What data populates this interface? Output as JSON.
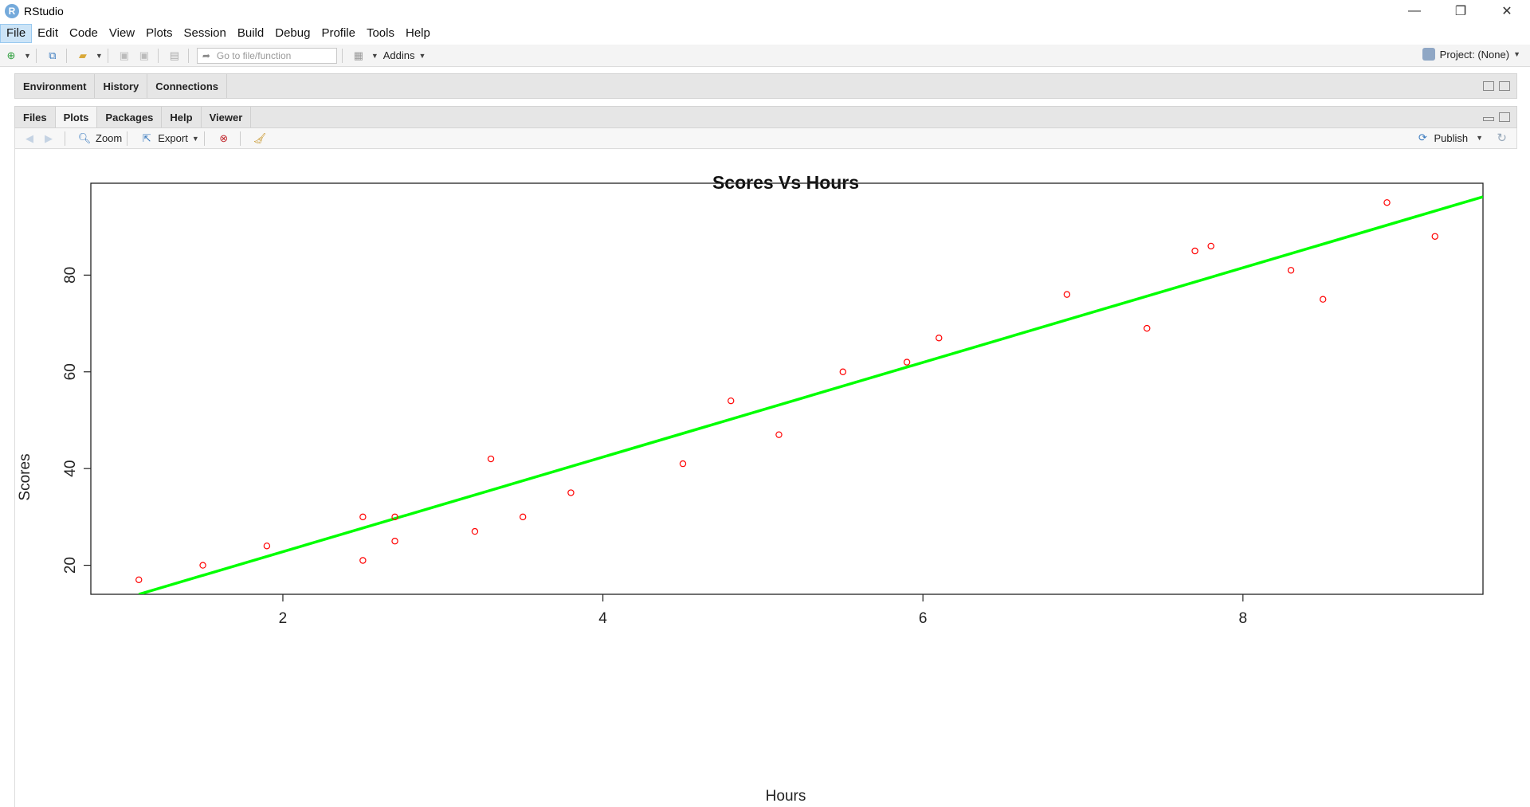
{
  "window": {
    "title": "RStudio",
    "icon_letter": "R"
  },
  "menu": [
    "File",
    "Edit",
    "Code",
    "View",
    "Plots",
    "Session",
    "Build",
    "Debug",
    "Profile",
    "Tools",
    "Help"
  ],
  "toolbar": {
    "goto_placeholder": "Go to file/function",
    "addins_label": "Addins",
    "project_label": "Project: (None)"
  },
  "env_tabs": [
    "Environment",
    "History",
    "Connections"
  ],
  "plot_tabs": [
    "Files",
    "Plots",
    "Packages",
    "Help",
    "Viewer"
  ],
  "plot_toolbar": {
    "zoom_label": "Zoom",
    "export_label": "Export",
    "publish_label": "Publish"
  },
  "colors": {
    "points": "#ff0000",
    "fit_line": "#00ff00",
    "accent": "#75aadb"
  },
  "chart_data": {
    "type": "scatter",
    "title": "Scores Vs Hours",
    "xlabel": "Hours",
    "ylabel": "Scores",
    "xlim": [
      0.8,
      9.5
    ],
    "ylim": [
      14,
      99
    ],
    "xticks": [
      2,
      4,
      6,
      8
    ],
    "yticks": [
      20,
      40,
      60,
      80
    ],
    "points": [
      [
        1.1,
        17
      ],
      [
        1.5,
        20
      ],
      [
        1.9,
        24
      ],
      [
        2.5,
        30
      ],
      [
        2.5,
        21
      ],
      [
        2.7,
        30
      ],
      [
        2.7,
        25
      ],
      [
        3.2,
        27
      ],
      [
        3.3,
        42
      ],
      [
        3.5,
        30
      ],
      [
        3.8,
        35
      ],
      [
        4.5,
        41
      ],
      [
        4.8,
        54
      ],
      [
        5.1,
        47
      ],
      [
        5.5,
        60
      ],
      [
        5.9,
        62
      ],
      [
        6.1,
        67
      ],
      [
        6.9,
        76
      ],
      [
        7.4,
        69
      ],
      [
        7.7,
        85
      ],
      [
        7.8,
        86
      ],
      [
        8.3,
        81
      ],
      [
        8.5,
        75
      ],
      [
        8.9,
        95
      ],
      [
        9.2,
        88
      ]
    ],
    "fit_line": {
      "x": [
        1.1,
        9.5
      ],
      "y": [
        14,
        96.2
      ]
    }
  }
}
